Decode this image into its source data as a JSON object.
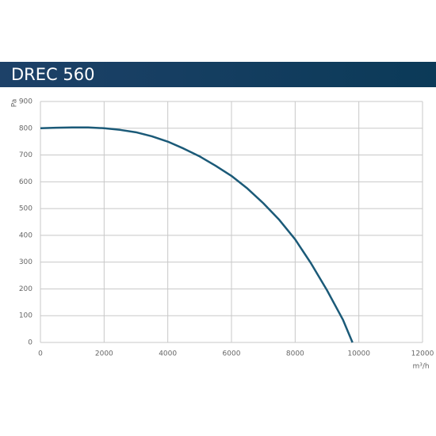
{
  "chart_data": {
    "type": "line",
    "title": "DREC 560",
    "ylabel": "Pa",
    "xlabel": "m³/h",
    "x": [
      0,
      500,
      1000,
      1500,
      2000,
      2500,
      3000,
      3500,
      4000,
      4500,
      5000,
      5500,
      6000,
      6500,
      7000,
      7500,
      8000,
      8500,
      9000,
      9500,
      9800
    ],
    "series": [
      {
        "name": "DREC 560",
        "color": "#1b5a78",
        "values": [
          800,
          802,
          803,
          803,
          800,
          794,
          785,
          770,
          750,
          724,
          695,
          660,
          622,
          575,
          520,
          458,
          385,
          295,
          195,
          85,
          0
        ]
      }
    ],
    "xlim": [
      0,
      12000
    ],
    "xticks": [
      0,
      2000,
      4000,
      6000,
      8000,
      10000,
      12000
    ],
    "ylim": [
      0,
      900
    ],
    "yticks": [
      0,
      100,
      200,
      300,
      400,
      500,
      600,
      700,
      800,
      900
    ],
    "grid": true
  }
}
